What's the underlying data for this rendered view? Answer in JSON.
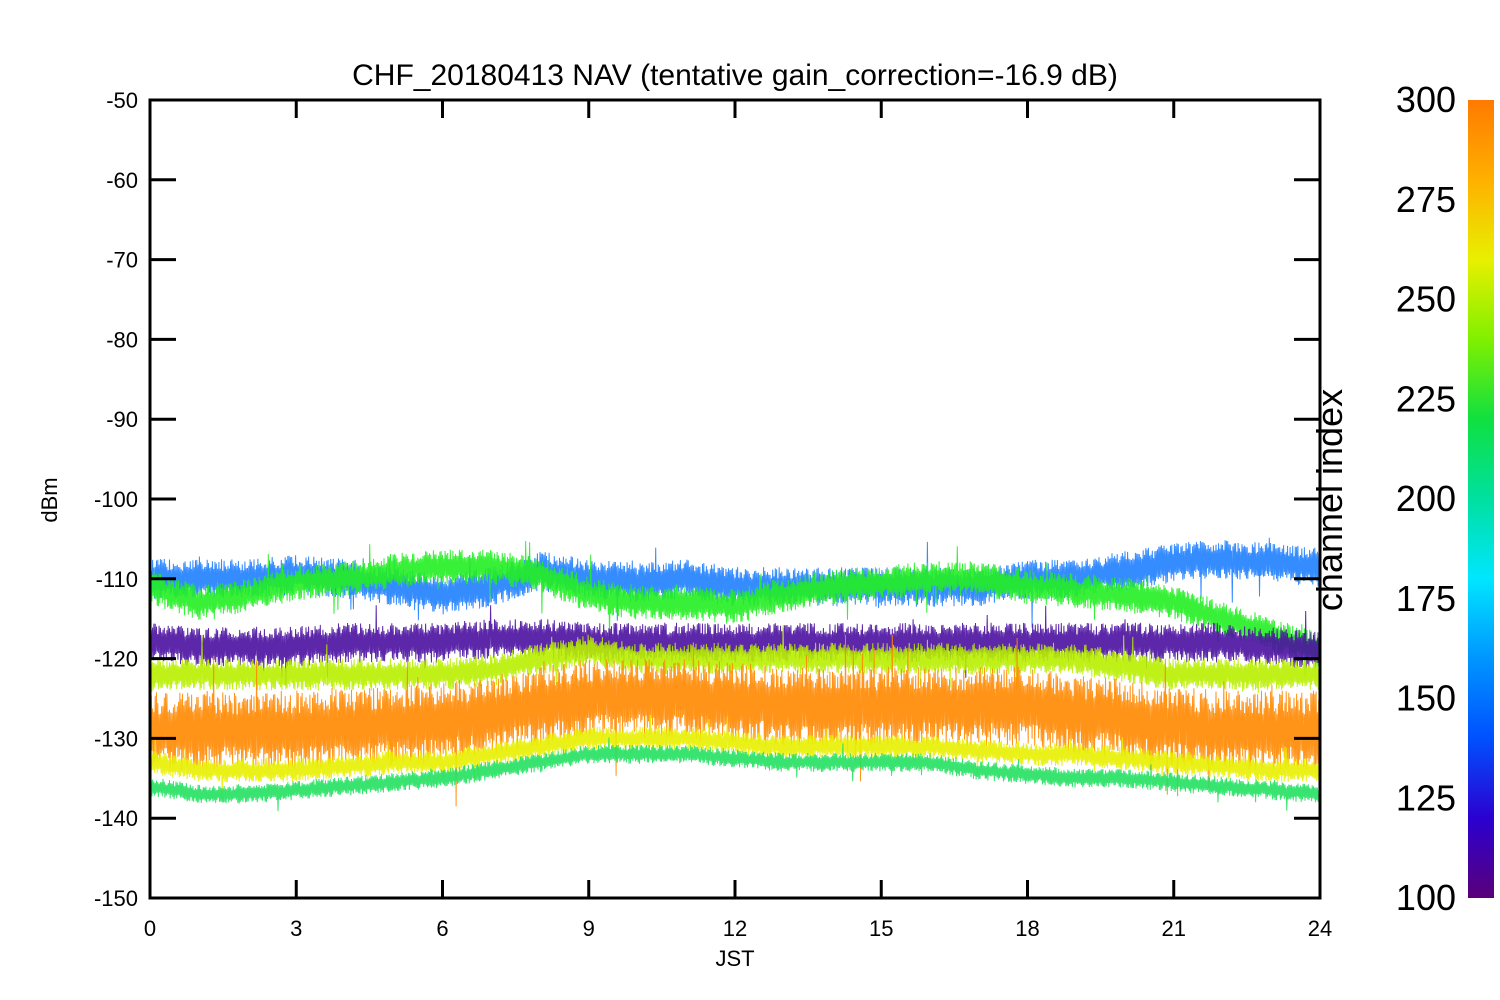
{
  "chart_data": {
    "type": "line",
    "title": "CHF_20180413 NAV (tentative gain_correction=-16.9 dB)",
    "xlabel": "JST",
    "ylabel": "dBm",
    "xlim": [
      0,
      24
    ],
    "ylim": [
      -150,
      -50
    ],
    "xticks": [
      "0",
      "3",
      "6",
      "9",
      "12",
      "15",
      "18",
      "21",
      "24"
    ],
    "yticks": [
      "-50",
      "-60",
      "-70",
      "-80",
      "-90",
      "-100",
      "-110",
      "-120",
      "-130",
      "-140",
      "-150"
    ],
    "grid": false,
    "colorbar": {
      "title": "channel index",
      "range": [
        100,
        300
      ],
      "ticks": [
        "300",
        "275",
        "250",
        "225",
        "200",
        "175",
        "150",
        "125",
        "100"
      ],
      "stops": [
        "#5a007a",
        "#2b00d0",
        "#0050ff",
        "#0096ff",
        "#00e6ff",
        "#00e0a0",
        "#10e040",
        "#80f000",
        "#e8f000",
        "#ffb000",
        "#ff7a00"
      ]
    },
    "series": [
      {
        "channel": 150,
        "color": "#1f7fff",
        "x": [
          0,
          1,
          2,
          3,
          4,
          5,
          6,
          7,
          8,
          9,
          10,
          11,
          12,
          13,
          14,
          15,
          16,
          17,
          18,
          19,
          20,
          21,
          22,
          23,
          24
        ],
        "y": [
          -110,
          -110,
          -110,
          -109.5,
          -110,
          -111,
          -112,
          -111,
          -109,
          -110,
          -110.5,
          -110,
          -111,
          -111,
          -111,
          -111,
          -111,
          -111,
          -110,
          -110,
          -109,
          -108,
          -107.5,
          -108,
          -108.5
        ],
        "spread": 2.5
      },
      {
        "channel": 230,
        "color": "#22ee22",
        "x": [
          0,
          1,
          2,
          3,
          4,
          5,
          6,
          7,
          8,
          9,
          10,
          11,
          12,
          13,
          14,
          15,
          16,
          17,
          18,
          19,
          20,
          21,
          22,
          23,
          24
        ],
        "y": [
          -111,
          -113,
          -112,
          -110.5,
          -110,
          -109,
          -108.5,
          -108.5,
          -109.5,
          -112,
          -113,
          -113,
          -113.5,
          -112,
          -111,
          -110.5,
          -110,
          -110,
          -111,
          -111.5,
          -112,
          -113,
          -115,
          -117,
          -119
        ],
        "spread": 2.2
      },
      {
        "channel": 110,
        "color": "#4a10a0",
        "x": [
          0,
          1,
          2,
          3,
          4,
          5,
          6,
          7,
          8,
          9,
          10,
          11,
          12,
          13,
          14,
          15,
          16,
          17,
          18,
          19,
          20,
          21,
          22,
          23,
          24
        ],
        "y": [
          -118,
          -118.5,
          -118.5,
          -118.5,
          -118,
          -118,
          -118,
          -117.5,
          -117.5,
          -118,
          -118,
          -118,
          -118,
          -118,
          -118,
          -118,
          -118,
          -118,
          -118,
          -118,
          -118,
          -118,
          -118,
          -118.5,
          -119
        ],
        "spread": 2.5
      },
      {
        "channel": 260,
        "color": "#b8f000",
        "x": [
          0,
          1,
          2,
          3,
          4,
          5,
          6,
          7,
          8,
          9,
          10,
          11,
          12,
          13,
          14,
          15,
          16,
          17,
          18,
          19,
          20,
          21,
          22,
          23,
          24
        ],
        "y": [
          -122,
          -122,
          -122,
          -122,
          -122,
          -122,
          -122,
          -121.5,
          -120,
          -119,
          -120,
          -120,
          -120,
          -120,
          -120,
          -120,
          -120,
          -120,
          -120,
          -120,
          -121,
          -122,
          -122,
          -122,
          -122
        ],
        "spread": 2
      },
      {
        "channel": 295,
        "color": "#ff8800",
        "x": [
          0,
          1,
          2,
          3,
          4,
          5,
          6,
          7,
          8,
          9,
          10,
          11,
          12,
          13,
          14,
          15,
          16,
          17,
          18,
          19,
          20,
          21,
          22,
          23,
          24
        ],
        "y": [
          -129,
          -129,
          -129,
          -129,
          -128.5,
          -128.5,
          -128,
          -127,
          -126,
          -125,
          -125,
          -125,
          -125.5,
          -126,
          -126,
          -126,
          -126,
          -126,
          -126,
          -127,
          -127.5,
          -128.5,
          -129,
          -129,
          -129
        ],
        "spread": 5
      },
      {
        "channel": 270,
        "color": "#e8f000",
        "x": [
          0,
          1,
          2,
          3,
          4,
          5,
          6,
          7,
          8,
          9,
          10,
          11,
          12,
          13,
          14,
          15,
          16,
          17,
          18,
          19,
          20,
          21,
          22,
          23,
          24
        ],
        "y": [
          -133,
          -134,
          -134,
          -134,
          -133.5,
          -133,
          -133,
          -132,
          -131,
          -130,
          -130,
          -130,
          -130.5,
          -131,
          -131,
          -131,
          -131,
          -131.5,
          -132,
          -132,
          -132.5,
          -133,
          -133.5,
          -134,
          -134
        ],
        "spread": 1.5
      },
      {
        "channel": 215,
        "color": "#22e060",
        "x": [
          0,
          1,
          2,
          3,
          4,
          5,
          6,
          7,
          8,
          9,
          10,
          11,
          12,
          13,
          14,
          15,
          16,
          17,
          18,
          19,
          20,
          21,
          22,
          23,
          24
        ],
        "y": [
          -136,
          -137,
          -137,
          -136.5,
          -136,
          -135.5,
          -135,
          -134,
          -133,
          -132,
          -132,
          -132,
          -132.5,
          -133,
          -133,
          -133,
          -133,
          -134,
          -134.5,
          -135,
          -135,
          -135.5,
          -136,
          -136.5,
          -137
        ],
        "spread": 1.2
      }
    ]
  }
}
